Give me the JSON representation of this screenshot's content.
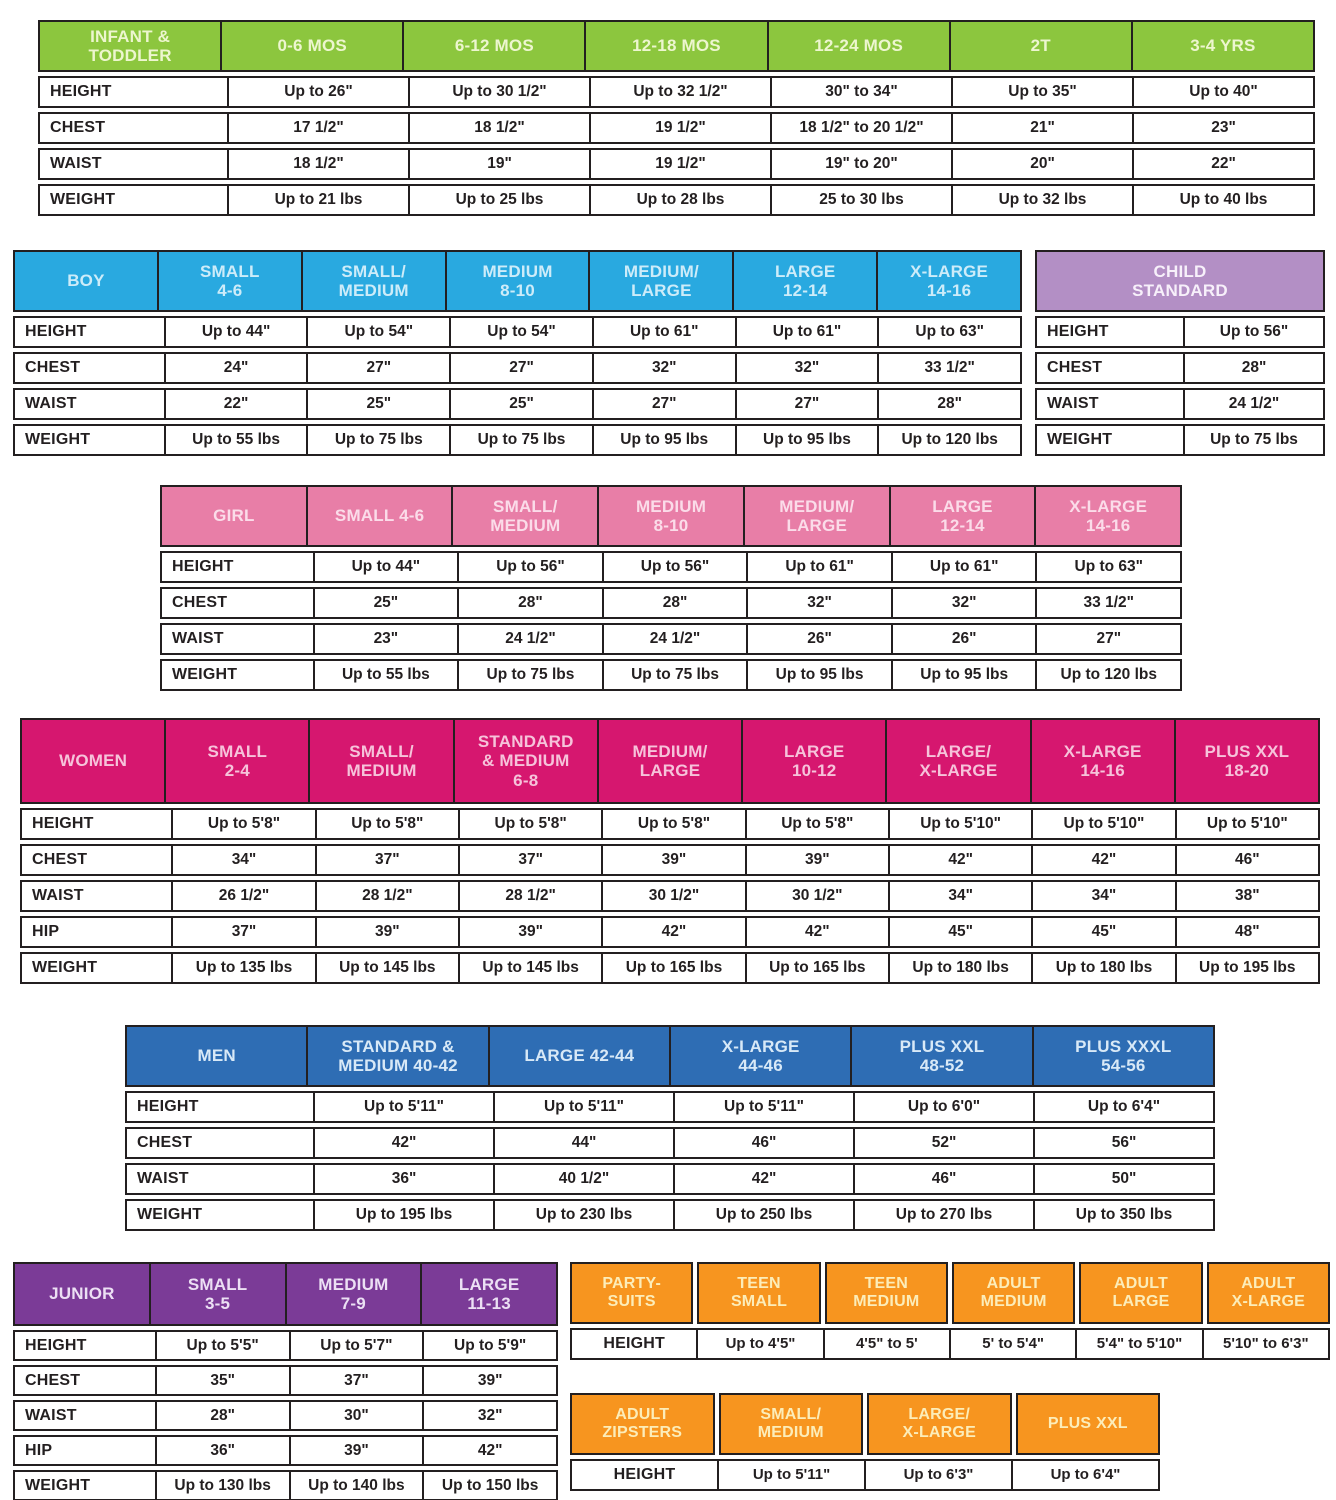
{
  "page": {
    "background": "#ffffff",
    "border_color": "#231f20",
    "body_text_color": "#231f20"
  },
  "tables": [
    {
      "id": "infant-toddler",
      "name": "INFANT &\nTODDLER",
      "colors": {
        "header_bg": "#8cc63e",
        "header_fg": "#edf6cf"
      },
      "columns": [
        "0-6 MOS",
        "6-12 MOS",
        "12-18 MOS",
        "12-24 MOS",
        "2T",
        "3-4 YRS"
      ],
      "rows": [
        {
          "label": "HEIGHT",
          "values": [
            "Up to 26\"",
            "Up to 30 1/2\"",
            "Up to 32 1/2\"",
            "30\" to 34\"",
            "Up to 35\"",
            "Up to 40\""
          ]
        },
        {
          "label": "CHEST",
          "values": [
            "17 1/2\"",
            "18 1/2\"",
            "19 1/2\"",
            "18 1/2\" to 20 1/2\"",
            "21\"",
            "23\""
          ]
        },
        {
          "label": "WAIST",
          "values": [
            "18 1/2\"",
            "19\"",
            "19 1/2\"",
            "19\" to 20\"",
            "20\"",
            "22\""
          ]
        },
        {
          "label": "WEIGHT",
          "values": [
            "Up to 21 lbs",
            "Up to 25 lbs",
            "Up to 28 lbs",
            "25 to 30 lbs",
            "Up to 32 lbs",
            "Up to 40 lbs"
          ]
        }
      ]
    },
    {
      "id": "boy",
      "name": "BOY",
      "colors": {
        "header_bg": "#29a9e0",
        "header_fg": "#cdecf9"
      },
      "columns": [
        "SMALL\n4-6",
        "SMALL/\nMEDIUM",
        "MEDIUM\n8-10",
        "MEDIUM/\nLARGE",
        "LARGE\n12-14",
        "X-LARGE\n14-16"
      ],
      "rows": [
        {
          "label": "HEIGHT",
          "values": [
            "Up to 44\"",
            "Up to 54\"",
            "Up to 54\"",
            "Up to 61\"",
            "Up to 61\"",
            "Up to 63\""
          ]
        },
        {
          "label": "CHEST",
          "values": [
            "24\"",
            "27\"",
            "27\"",
            "32\"",
            "32\"",
            "33 1/2\""
          ]
        },
        {
          "label": "WAIST",
          "values": [
            "22\"",
            "25\"",
            "25\"",
            "27\"",
            "27\"",
            "28\""
          ]
        },
        {
          "label": "WEIGHT",
          "values": [
            "Up to 55 lbs",
            "Up to 75 lbs",
            "Up to 75 lbs",
            "Up to 95 lbs",
            "Up to 95 lbs",
            "Up to 120 lbs"
          ]
        }
      ]
    },
    {
      "id": "child-standard",
      "name": "CHILD\nSTANDARD",
      "colors": {
        "header_bg": "#b38fc5",
        "header_fg": "#f7f0fa"
      },
      "columns": [],
      "rows": [
        {
          "label": "HEIGHT",
          "values": [
            "Up to 56\""
          ]
        },
        {
          "label": "CHEST",
          "values": [
            "28\""
          ]
        },
        {
          "label": "WAIST",
          "values": [
            "24 1/2\""
          ]
        },
        {
          "label": "WEIGHT",
          "values": [
            "Up to 75 lbs"
          ]
        }
      ]
    },
    {
      "id": "girl",
      "name": "GIRL",
      "colors": {
        "header_bg": "#e87ea7",
        "header_fg": "#fbdce9"
      },
      "columns": [
        "SMALL 4-6",
        "SMALL/\nMEDIUM",
        "MEDIUM\n8-10",
        "MEDIUM/\nLARGE",
        "LARGE\n12-14",
        "X-LARGE\n14-16"
      ],
      "rows": [
        {
          "label": "HEIGHT",
          "values": [
            "Up to 44\"",
            "Up to 56\"",
            "Up to 56\"",
            "Up to 61\"",
            "Up to 61\"",
            "Up to 63\""
          ]
        },
        {
          "label": "CHEST",
          "values": [
            "25\"",
            "28\"",
            "28\"",
            "32\"",
            "32\"",
            "33 1/2\""
          ]
        },
        {
          "label": "WAIST",
          "values": [
            "23\"",
            "24 1/2\"",
            "24 1/2\"",
            "26\"",
            "26\"",
            "27\""
          ]
        },
        {
          "label": "WEIGHT",
          "values": [
            "Up to 55 lbs",
            "Up to 75 lbs",
            "Up to 75 lbs",
            "Up to 95 lbs",
            "Up to 95 lbs",
            "Up to 120 lbs"
          ]
        }
      ]
    },
    {
      "id": "women",
      "name": "WOMEN",
      "colors": {
        "header_bg": "#d6176f",
        "header_fg": "#f6c3da"
      },
      "columns": [
        "SMALL\n2-4",
        "SMALL/\nMEDIUM",
        "STANDARD\n& MEDIUM\n6-8",
        "MEDIUM/\nLARGE",
        "LARGE\n10-12",
        "LARGE/\nX-LARGE",
        "X-LARGE\n14-16",
        "PLUS XXL\n18-20"
      ],
      "rows": [
        {
          "label": "HEIGHT",
          "values": [
            "Up to 5'8\"",
            "Up to 5'8\"",
            "Up to 5'8\"",
            "Up to 5'8\"",
            "Up to 5'8\"",
            "Up to 5'10\"",
            "Up to 5'10\"",
            "Up to 5'10\""
          ]
        },
        {
          "label": "CHEST",
          "values": [
            "34\"",
            "37\"",
            "37\"",
            "39\"",
            "39\"",
            "42\"",
            "42\"",
            "46\""
          ]
        },
        {
          "label": "WAIST",
          "values": [
            "26 1/2\"",
            "28 1/2\"",
            "28 1/2\"",
            "30 1/2\"",
            "30 1/2\"",
            "34\"",
            "34\"",
            "38\""
          ]
        },
        {
          "label": "HIP",
          "values": [
            "37\"",
            "39\"",
            "39\"",
            "42\"",
            "42\"",
            "45\"",
            "45\"",
            "48\""
          ]
        },
        {
          "label": "WEIGHT",
          "values": [
            "Up to 135 lbs",
            "Up to 145 lbs",
            "Up to 145 lbs",
            "Up to 165 lbs",
            "Up to 165 lbs",
            "Up to 180 lbs",
            "Up to 180 lbs",
            "Up to 195 lbs"
          ]
        }
      ]
    },
    {
      "id": "men",
      "name": "MEN",
      "colors": {
        "header_bg": "#2e6db4",
        "header_fg": "#d8e9f7"
      },
      "columns": [
        "STANDARD &\nMEDIUM 40-42",
        "LARGE 42-44",
        "X-LARGE\n44-46",
        "PLUS XXL\n48-52",
        "PLUS XXXL\n54-56"
      ],
      "rows": [
        {
          "label": "HEIGHT",
          "values": [
            "Up to 5'11\"",
            "Up to 5'11\"",
            "Up to 5'11\"",
            "Up to 6'0\"",
            "Up to 6'4\""
          ]
        },
        {
          "label": "CHEST",
          "values": [
            "42\"",
            "44\"",
            "46\"",
            "52\"",
            "56\""
          ]
        },
        {
          "label": "WAIST",
          "values": [
            "36\"",
            "40 1/2\"",
            "42\"",
            "46\"",
            "50\""
          ]
        },
        {
          "label": "WEIGHT",
          "values": [
            "Up to 195 lbs",
            "Up to 230 lbs",
            "Up to 250 lbs",
            "Up to 270 lbs",
            "Up to 350 lbs"
          ]
        }
      ]
    },
    {
      "id": "junior",
      "name": "JUNIOR",
      "colors": {
        "header_bg": "#7b3b97",
        "header_fg": "#ece0f4"
      },
      "columns": [
        "SMALL\n3-5",
        "MEDIUM\n7-9",
        "LARGE\n11-13"
      ],
      "rows": [
        {
          "label": "HEIGHT",
          "values": [
            "Up to 5'5\"",
            "Up to 5'7\"",
            "Up to 5'9\""
          ]
        },
        {
          "label": "CHEST",
          "values": [
            "35\"",
            "37\"",
            "39\""
          ]
        },
        {
          "label": "WAIST",
          "values": [
            "28\"",
            "30\"",
            "32\""
          ]
        },
        {
          "label": "HIP",
          "values": [
            "36\"",
            "39\"",
            "42\""
          ]
        },
        {
          "label": "WEIGHT",
          "values": [
            "Up to 130 lbs",
            "Up to 140 lbs",
            "Up to 150 lbs"
          ]
        }
      ]
    },
    {
      "id": "party-suits",
      "name": "PARTY-\nSUITS",
      "colors": {
        "header_bg": "#f7951f",
        "header_fg": "#fcedb9"
      },
      "columns": [
        "TEEN\nSMALL",
        "TEEN\nMEDIUM",
        "ADULT\nMEDIUM",
        "ADULT\nLARGE",
        "ADULT\nX-LARGE"
      ],
      "rows": [
        {
          "label": "HEIGHT",
          "values": [
            "Up to 4'5\"",
            "4'5\" to 5'",
            "5' to 5'4\"",
            "5'4\" to 5'10\"",
            "5'10\" to 6'3\""
          ]
        }
      ]
    },
    {
      "id": "adult-zipsters",
      "name": "ADULT\nZIPSTERS",
      "colors": {
        "header_bg": "#f7951f",
        "header_fg": "#fcedb9"
      },
      "columns": [
        "SMALL/\nMEDIUM",
        "LARGE/\nX-LARGE",
        "PLUS XXL"
      ],
      "rows": [
        {
          "label": "HEIGHT",
          "values": [
            "Up to 5'11\"",
            "Up to 6'3\"",
            "Up to 6'4\""
          ]
        }
      ]
    }
  ]
}
